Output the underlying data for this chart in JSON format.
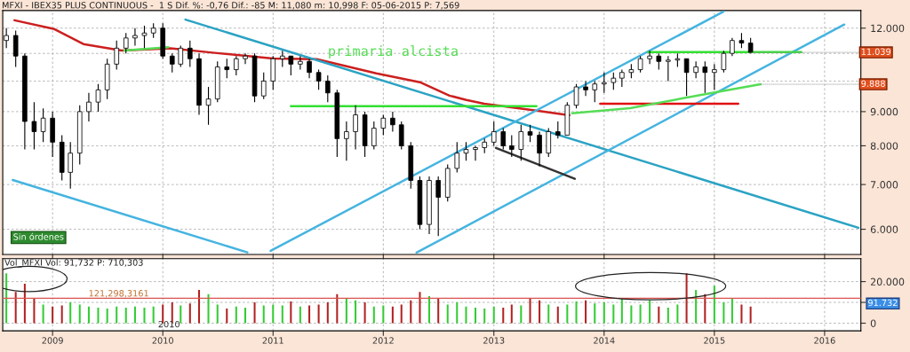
{
  "chart_data": [
    {
      "type": "candlestick",
      "title": "MFXI - IBEX35 PLUS CONTINUOUS -  1 S Dif. %: -0,76 Dif.: -85 M: 11,080 m: 10,998 F: 05-06-2015 P: 7,569",
      "color": "#000000",
      "log": "y",
      "grid": true,
      "tick_labels": "y",
      "x": [
        "2008-08",
        "2008-09",
        "2008-10",
        "2008-11",
        "2008-12",
        "2009-01",
        "2009-02",
        "2009-03",
        "2009-04",
        "2009-05",
        "2009-06",
        "2009-07",
        "2009-08",
        "2009-09",
        "2009-10",
        "2009-11",
        "2009-12",
        "2010-01",
        "2010-02",
        "2010-03",
        "2010-04",
        "2010-05",
        "2010-06",
        "2010-07",
        "2010-08",
        "2010-09",
        "2010-10",
        "2010-11",
        "2010-12",
        "2011-01",
        "2011-02",
        "2011-03",
        "2011-04",
        "2011-05",
        "2011-06",
        "2011-07",
        "2011-08",
        "2011-09",
        "2011-10",
        "2011-11",
        "2011-12",
        "2012-01",
        "2012-02",
        "2012-03",
        "2012-04",
        "2012-05",
        "2012-06",
        "2012-07",
        "2012-08",
        "2012-09",
        "2012-10",
        "2012-11",
        "2012-12",
        "2013-01",
        "2013-02",
        "2013-03",
        "2013-04",
        "2013-05",
        "2013-06",
        "2013-07",
        "2013-08",
        "2013-09",
        "2013-10",
        "2013-11",
        "2013-12",
        "2014-01",
        "2014-02",
        "2014-03",
        "2014-04",
        "2014-05",
        "2014-06",
        "2014-07",
        "2014-08",
        "2014-09",
        "2014-10",
        "2014-11",
        "2014-12",
        "2015-01",
        "2015-02",
        "2015-03",
        "2015-04",
        "2015-05"
      ],
      "ohlc": [
        [
          11.5,
          12.0,
          11.2,
          11.7
        ],
        [
          11.7,
          11.9,
          10.5,
          10.9
        ],
        [
          10.9,
          11.0,
          7.9,
          8.7
        ],
        [
          8.7,
          9.3,
          7.9,
          8.4
        ],
        [
          8.4,
          9.1,
          8.1,
          8.8
        ],
        [
          8.8,
          9.0,
          7.7,
          8.1
        ],
        [
          8.1,
          8.3,
          7.1,
          7.3
        ],
        [
          7.3,
          8.1,
          6.9,
          7.8
        ],
        [
          7.8,
          9.2,
          7.5,
          9.0
        ],
        [
          9.0,
          9.6,
          8.7,
          9.3
        ],
        [
          9.3,
          9.9,
          9.0,
          9.7
        ],
        [
          9.7,
          10.8,
          9.4,
          10.6
        ],
        [
          10.6,
          11.5,
          10.4,
          11.2
        ],
        [
          11.2,
          11.8,
          11.0,
          11.6
        ],
        [
          11.6,
          12.0,
          11.3,
          11.7
        ],
        [
          11.7,
          12.1,
          11.2,
          11.8
        ],
        [
          11.8,
          12.2,
          11.6,
          12.0
        ],
        [
          12.0,
          12.2,
          10.8,
          10.9
        ],
        [
          10.9,
          11.0,
          10.3,
          10.6
        ],
        [
          10.6,
          11.3,
          10.5,
          11.2
        ],
        [
          11.2,
          11.5,
          10.5,
          10.8
        ],
        [
          10.8,
          11.0,
          8.9,
          9.2
        ],
        [
          9.2,
          9.8,
          8.6,
          9.4
        ],
        [
          9.4,
          10.7,
          9.3,
          10.5
        ],
        [
          10.5,
          10.8,
          10.1,
          10.4
        ],
        [
          10.4,
          10.9,
          10.2,
          10.8
        ],
        [
          10.8,
          11.0,
          10.6,
          10.9
        ],
        [
          10.9,
          11.0,
          9.3,
          9.5
        ],
        [
          9.5,
          10.3,
          9.4,
          10.0
        ],
        [
          10.0,
          10.9,
          9.7,
          10.8
        ],
        [
          10.8,
          11.1,
          10.5,
          10.9
        ],
        [
          10.9,
          10.9,
          10.2,
          10.6
        ],
        [
          10.6,
          10.9,
          10.4,
          10.7
        ],
        [
          10.7,
          10.8,
          10.1,
          10.3
        ],
        [
          10.3,
          10.4,
          9.7,
          10.0
        ],
        [
          10.0,
          10.2,
          9.3,
          9.6
        ],
        [
          9.6,
          9.7,
          7.7,
          8.2
        ],
        [
          8.2,
          8.7,
          7.6,
          8.4
        ],
        [
          8.4,
          9.2,
          7.9,
          8.9
        ],
        [
          8.9,
          9.0,
          7.7,
          8.0
        ],
        [
          8.0,
          8.7,
          7.9,
          8.5
        ],
        [
          8.5,
          8.9,
          8.3,
          8.8
        ],
        [
          8.8,
          9.0,
          8.4,
          8.6
        ],
        [
          8.6,
          8.7,
          7.9,
          8.0
        ],
        [
          8.0,
          8.1,
          6.9,
          7.1
        ],
        [
          7.1,
          7.2,
          6.0,
          6.1
        ],
        [
          6.1,
          7.2,
          5.9,
          7.1
        ],
        [
          7.1,
          7.2,
          5.86,
          6.7
        ],
        [
          6.7,
          7.5,
          6.6,
          7.4
        ],
        [
          7.4,
          8.1,
          7.3,
          7.8
        ],
        [
          7.8,
          8.1,
          7.6,
          7.9
        ],
        [
          7.9,
          8.0,
          7.6,
          7.95
        ],
        [
          7.95,
          8.2,
          7.8,
          8.1
        ],
        [
          8.1,
          8.7,
          8.0,
          8.4
        ],
        [
          8.4,
          8.5,
          7.9,
          8.0
        ],
        [
          8.0,
          8.3,
          7.7,
          7.9
        ],
        [
          7.9,
          8.6,
          7.6,
          8.4
        ],
        [
          8.4,
          8.6,
          8.1,
          8.3
        ],
        [
          8.3,
          8.4,
          7.45,
          7.8
        ],
        [
          7.8,
          8.5,
          7.7,
          8.4
        ],
        [
          8.4,
          8.7,
          8.2,
          8.3
        ],
        [
          8.3,
          9.3,
          8.3,
          9.2
        ],
        [
          9.2,
          9.9,
          9.1,
          9.8
        ],
        [
          9.8,
          10.0,
          9.5,
          9.7
        ],
        [
          9.7,
          10.0,
          9.3,
          9.9
        ],
        [
          9.9,
          10.3,
          9.6,
          9.95
        ],
        [
          9.95,
          10.3,
          9.7,
          10.1
        ],
        [
          10.1,
          10.4,
          9.8,
          10.3
        ],
        [
          10.3,
          10.6,
          10.1,
          10.4
        ],
        [
          10.4,
          10.9,
          10.3,
          10.8
        ],
        [
          10.8,
          11.1,
          10.6,
          10.9
        ],
        [
          10.9,
          11.0,
          10.4,
          10.7
        ],
        [
          10.7,
          10.9,
          10.0,
          10.75
        ],
        [
          10.75,
          11.0,
          10.5,
          10.8
        ],
        [
          10.8,
          10.8,
          9.5,
          10.3
        ],
        [
          10.3,
          10.7,
          10.1,
          10.5
        ],
        [
          10.5,
          10.7,
          9.6,
          10.3
        ],
        [
          10.3,
          10.6,
          9.7,
          10.4
        ],
        [
          10.4,
          11.1,
          10.3,
          11.0
        ],
        [
          11.0,
          11.6,
          10.9,
          11.5
        ],
        [
          11.5,
          11.8,
          11.2,
          11.4
        ],
        [
          11.4,
          11.6,
          11.0,
          11.039
        ]
      ],
      "series": [
        {
          "type": "line",
          "color": "#cc1f1f",
          "x": [
            "2008-08-28",
            "2009-01-07",
            "2009-04-13",
            "2009-08-18",
            "2010-01-27",
            "2010-06-22",
            "2011-01-01",
            "2011-05-26",
            "2011-12-09",
            "2012-05-01",
            "2012-08-07",
            "2012-10-02",
            "2012-11-30",
            "2013-05-22",
            "2013-09-08"
          ],
          "values": [
            12.33,
            11.96,
            11.36,
            11.11,
            11.19,
            11.02,
            10.81,
            10.78,
            10.27,
            9.96,
            9.51,
            9.37,
            9.25,
            9.03,
            8.89
          ]
        },
        {
          "type": "line",
          "color": "#2ba3c4",
          "x": [
            "2010-03-17",
            "2016-04-22"
          ],
          "values": [
            12.36,
            6.03
          ]
        },
        {
          "type": "line",
          "color": "#45b4e0",
          "x": [
            "2008-08-22",
            "2010-10-08"
          ],
          "values": [
            7.11,
            5.54
          ]
        },
        {
          "type": "line",
          "color": "#45b4e0",
          "x": [
            "2012-04-20",
            "2016-03-06"
          ],
          "values": [
            5.535,
            12.15
          ]
        },
        {
          "type": "line",
          "color": "#45b4e0",
          "x": [
            "2010-12-24",
            "2015-01-31"
          ],
          "values": [
            5.57,
            12.7
          ]
        },
        {
          "type": "line",
          "color": "#333333",
          "x": [
            "2013-01-08",
            "2013-09-26"
          ],
          "values": [
            7.94,
            7.14
          ]
        },
        {
          "type": "line",
          "color": "#33e033",
          "x": [
            "2011-03-01",
            "2013-05-22"
          ],
          "values": [
            9.17,
            9.17
          ]
        },
        {
          "type": "line",
          "color": "#33e033",
          "x": [
            "2014-05-27",
            "2015-10-16"
          ],
          "values": [
            11.05,
            11.05
          ]
        },
        {
          "type": "line",
          "color": "#e01010",
          "x": [
            "2013-12-19",
            "2015-03-21"
          ],
          "values": [
            9.25,
            9.25
          ]
        },
        {
          "type": "line",
          "color": "#55dd55",
          "x": [
            "2013-09-17",
            "2014-03-28",
            "2014-12-25",
            "2015-06-03"
          ],
          "values": [
            8.95,
            9.11,
            9.6,
            9.888
          ]
        },
        {
          "type": "line",
          "color": "#55dd55",
          "x": [
            "2009-08-26",
            "2010-01-19"
          ],
          "values": [
            11.11,
            11.24
          ]
        }
      ],
      "xlim": [
        "2008-07-20",
        "2016-04-30"
      ],
      "ylim": [
        5.5,
        12.75
      ],
      "yticks": [
        {
          "value": 6,
          "label": "6.000"
        },
        {
          "value": 7,
          "label": "7.000"
        },
        {
          "value": 8,
          "label": "8.000"
        },
        {
          "value": 9,
          "label": "9.000"
        },
        {
          "value": 10,
          "label": null
        },
        {
          "value": 11,
          "label": null
        },
        {
          "value": 12,
          "label": "12.000"
        }
      ],
      "xticks": [
        {
          "value": "2009-01-01",
          "label": null
        },
        {
          "value": "2010-01-01",
          "label": null
        },
        {
          "value": "2011-01-01",
          "label": null
        },
        {
          "value": "2012-01-01",
          "label": null
        },
        {
          "value": "2013-01-01",
          "label": null
        },
        {
          "value": "2014-01-01",
          "label": null
        },
        {
          "value": "2015-01-01",
          "label": null
        },
        {
          "value": "2016-01-01",
          "label": null
        }
      ],
      "annotations": [
        "primaria alcista",
        {
          "text": "11.039",
          "x": "2015-05",
          "y": 11.039
        },
        {
          "text": "9.888",
          "x": "2015-06-03",
          "y": 9.888
        },
        "Sin órdenes"
      ]
    },
    {
      "type": "bar",
      "title": "Vol_MFXI Vol: 91,732 P: 710,303",
      "grid": true,
      "x": [
        "2008-08",
        "2008-09",
        "2008-10",
        "2008-11",
        "2008-12",
        "2009-01",
        "2009-02",
        "2009-03",
        "2009-04",
        "2009-05",
        "2009-06",
        "2009-07",
        "2009-08",
        "2009-09",
        "2009-10",
        "2009-11",
        "2009-12",
        "2010-01",
        "2010-02",
        "2010-03",
        "2010-04",
        "2010-05",
        "2010-06",
        "2010-07",
        "2010-08",
        "2010-09",
        "2010-10",
        "2010-11",
        "2010-12",
        "2011-01",
        "2011-02",
        "2011-03",
        "2011-04",
        "2011-05",
        "2011-06",
        "2011-07",
        "2011-08",
        "2011-09",
        "2011-10",
        "2011-11",
        "2011-12",
        "2012-01",
        "2012-02",
        "2012-03",
        "2012-04",
        "2012-05",
        "2012-06",
        "2012-07",
        "2012-08",
        "2012-09",
        "2012-10",
        "2012-11",
        "2012-12",
        "2013-01",
        "2013-02",
        "2013-03",
        "2013-04",
        "2013-05",
        "2013-06",
        "2013-07",
        "2013-08",
        "2013-09",
        "2013-10",
        "2013-11",
        "2013-12",
        "2014-01",
        "2014-02",
        "2014-03",
        "2014-04",
        "2014-05",
        "2014-06",
        "2014-07",
        "2014-08",
        "2014-09",
        "2014-10",
        "2014-11",
        "2014-12",
        "2015-01",
        "2015-02",
        "2015-03",
        "2015-04",
        "2015-05"
      ],
      "values": [
        24,
        15,
        19,
        12,
        9,
        8,
        8.5,
        10,
        9,
        8,
        7.5,
        7,
        8,
        7.5,
        8,
        7.5,
        8,
        9,
        10,
        8.5,
        9.5,
        16,
        14,
        9,
        7,
        8,
        7.5,
        10,
        8.5,
        9,
        8.5,
        10.5,
        8,
        8.5,
        9,
        10,
        14,
        12,
        11,
        10,
        8,
        8.5,
        8,
        9,
        11,
        15,
        13,
        12,
        9,
        10,
        8,
        7.5,
        7,
        8,
        7.5,
        9,
        8.5,
        12,
        11,
        9,
        8,
        9,
        10.5,
        11,
        9.5,
        10,
        9,
        12,
        8.5,
        9,
        11,
        8,
        7.5,
        9,
        24,
        16,
        14,
        18,
        10,
        12,
        9,
        8
      ],
      "colors": [
        "#33cc33",
        "#b22222",
        "#b22222",
        "#b22222",
        "#33cc33",
        "#b22222",
        "#b22222",
        "#33cc33",
        "#33cc33",
        "#33cc33",
        "#33cc33",
        "#33cc33",
        "#33cc33",
        "#33cc33",
        "#33cc33",
        "#33cc33",
        "#33cc33",
        "#b22222",
        "#b22222",
        "#33cc33",
        "#b22222",
        "#b22222",
        "#33cc33",
        "#33cc33",
        "#b22222",
        "#33cc33",
        "#33cc33",
        "#b22222",
        "#33cc33",
        "#33cc33",
        "#33cc33",
        "#b22222",
        "#33cc33",
        "#b22222",
        "#b22222",
        "#b22222",
        "#b22222",
        "#33cc33",
        "#33cc33",
        "#b22222",
        "#33cc33",
        "#33cc33",
        "#b22222",
        "#b22222",
        "#b22222",
        "#b22222",
        "#33cc33",
        "#b22222",
        "#33cc33",
        "#33cc33",
        "#33cc33",
        "#33cc33",
        "#33cc33",
        "#33cc33",
        "#b22222",
        "#b22222",
        "#33cc33",
        "#b22222",
        "#b22222",
        "#33cc33",
        "#b22222",
        "#33cc33",
        "#33cc33",
        "#b22222",
        "#33cc33",
        "#33cc33",
        "#33cc33",
        "#33cc33",
        "#33cc33",
        "#33cc33",
        "#33cc33",
        "#b22222",
        "#33cc33",
        "#33cc33",
        "#b22222",
        "#33cc33",
        "#b22222",
        "#33cc33",
        "#33cc33",
        "#33cc33",
        "#b22222",
        "#b22222"
      ],
      "xlim": [
        "2008-07-20",
        "2016-04-30"
      ],
      "ylim": [
        -3.7,
        31
      ],
      "yticks": [
        0,
        {
          "value": 10,
          "label": null
        },
        {
          "value": 20,
          "label": "20.000"
        }
      ],
      "xticks": [
        {
          "value": "2009-01-01",
          "label": "2009"
        },
        {
          "value": "2010-01-01",
          "label": "2010"
        },
        {
          "value": "2011-01-01",
          "label": "2011"
        },
        {
          "value": "2012-01-01",
          "label": "2012"
        },
        {
          "value": "2013-01-01",
          "label": "2013"
        },
        {
          "value": "2014-01-01",
          "label": "2014"
        },
        {
          "value": "2015-01-01",
          "label": "2015"
        },
        {
          "value": "2016-01-01",
          "label": "2016"
        }
      ],
      "ref_lines": [
        {
          "axis": "y",
          "value": 12,
          "label": "121,298,3161",
          "color": "#d9534f"
        }
      ],
      "annotations": [
        "91.732",
        "2010"
      ]
    }
  ]
}
